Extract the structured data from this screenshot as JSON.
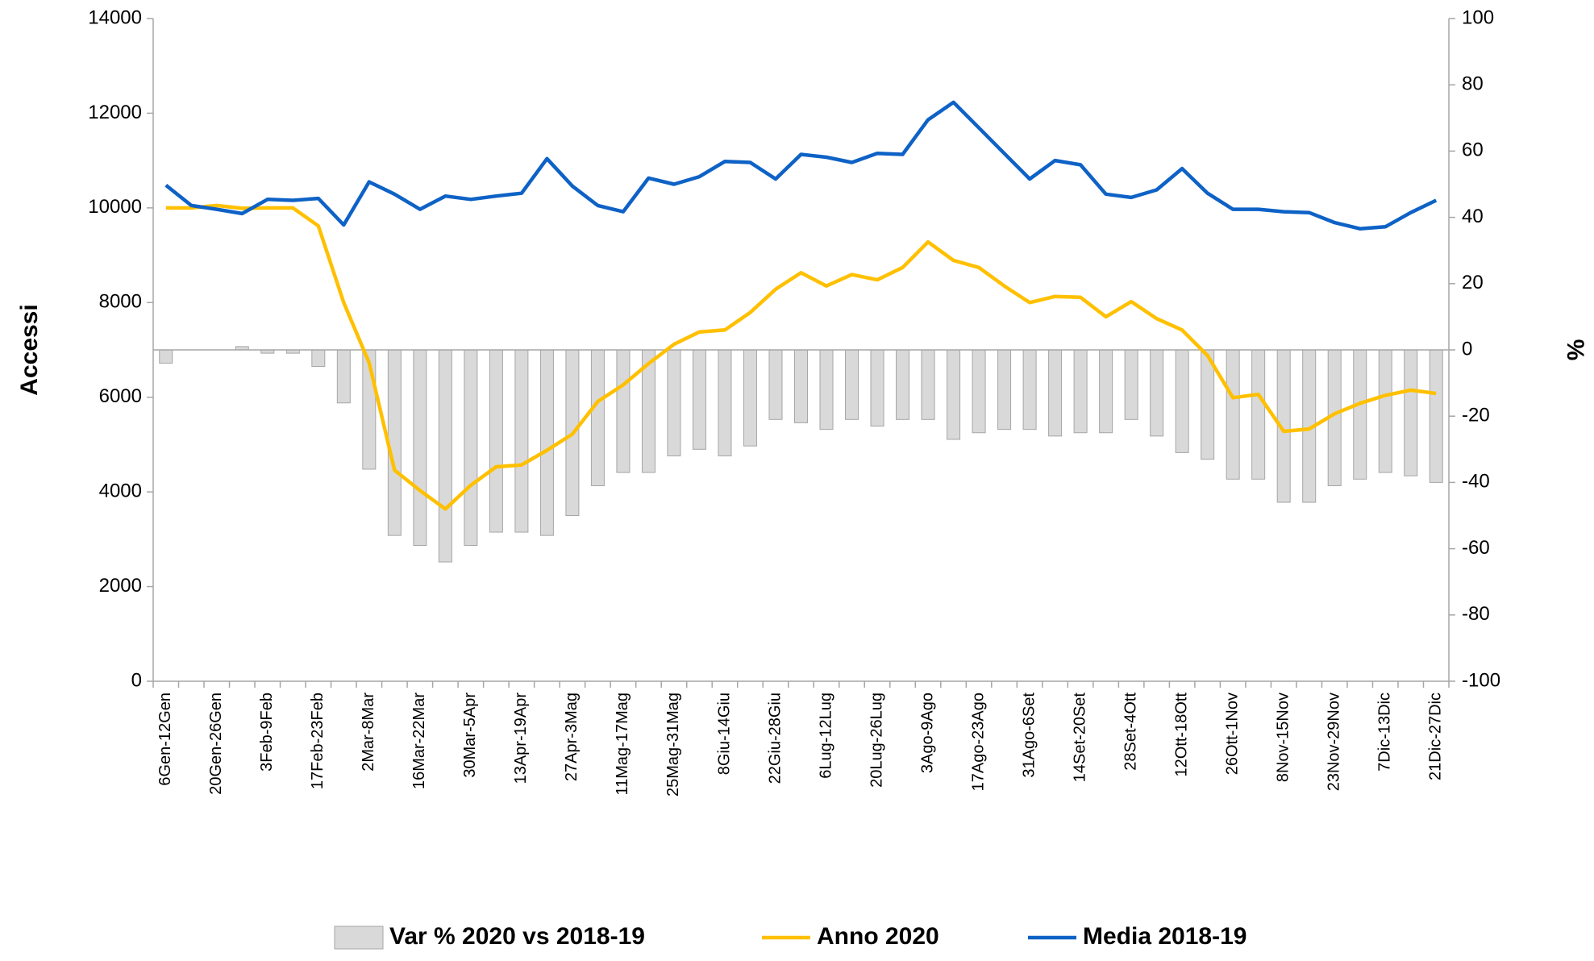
{
  "chart_data": {
    "type": "combo",
    "ylabel": "Accessi",
    "y2label": "%",
    "categories": [
      "6Gen-12Gen",
      null,
      "20Gen-26Gen",
      null,
      "3Feb-9Feb",
      null,
      "17Feb-23Feb",
      null,
      "2Mar-8Mar",
      null,
      "16Mar-22Mar",
      null,
      "30Mar-5Apr",
      null,
      "13Apr-19Apr",
      null,
      "27Apr-3Mag",
      null,
      "11Mag-17Mag",
      null,
      "25Mag-31Mag",
      null,
      "8Giu-14Giu",
      null,
      "22Giu-28Giu",
      null,
      "6Lug-12Lug",
      null,
      "20Lug-26Lug",
      null,
      "3Ago-9Ago",
      null,
      "17Ago-23Ago",
      null,
      "31Ago-6Set",
      null,
      "14Set-20Set",
      null,
      "28Set-4Ott",
      null,
      "12Ott-18Ott",
      null,
      "26Ott-1Nov",
      null,
      "8Nov-15Nov",
      null,
      "23Nov-29Nov",
      null,
      "7Dic-13Dic",
      null,
      "21Dic-27Dic"
    ],
    "series": [
      {
        "name": "Var % 2020 vs 2018-19",
        "type": "bar",
        "axis": "y2",
        "color": "#d9d9d9",
        "values": [
          -4,
          0,
          0,
          1,
          -1,
          -1,
          -5,
          -16,
          -36,
          -56,
          -59,
          -64,
          -59,
          -55,
          -55,
          -56,
          -50,
          -41,
          -37,
          -37,
          -32,
          -30,
          -32,
          -29,
          -21,
          -22,
          -24,
          -21,
          -23,
          -21,
          -21,
          -27,
          -25,
          -24,
          -24,
          -26,
          -25,
          -25,
          -21,
          -26,
          -31,
          -33,
          -39,
          -39,
          -46,
          -46,
          -41,
          -39,
          -37,
          -38,
          -40
        ]
      },
      {
        "name": "Anno 2020",
        "type": "line",
        "color": "#ffc000",
        "values": [
          10000,
          10000,
          10050,
          9990,
          10000,
          10000,
          9620,
          8000,
          6730,
          4460,
          4030,
          3640,
          4140,
          4530,
          4570,
          4880,
          5220,
          5910,
          6260,
          6710,
          7120,
          7380,
          7420,
          7790,
          8280,
          8630,
          8350,
          8590,
          8480,
          8740,
          9280,
          8890,
          8740,
          8350,
          8000,
          8130,
          8110,
          7700,
          8020,
          7660,
          7420,
          6880,
          5990,
          6060,
          5280,
          5330,
          5650,
          5870,
          6040,
          6150,
          6080
        ]
      },
      {
        "name": "Media 2018-19",
        "type": "line",
        "color": "#0e62c6",
        "values": [
          10480,
          10050,
          9970,
          9880,
          10180,
          10160,
          10200,
          9640,
          10550,
          10290,
          9970,
          10250,
          10180,
          10250,
          10310,
          11040,
          10460,
          10050,
          9920,
          10630,
          10500,
          10660,
          10980,
          10960,
          10610,
          11130,
          11070,
          10960,
          11150,
          11130,
          11860,
          12230,
          11690,
          11150,
          10610,
          11000,
          10910,
          10290,
          10220,
          10380,
          10830,
          10310,
          9970,
          9970,
          9920,
          9900,
          9690,
          9560,
          9600,
          9900,
          10160
        ]
      }
    ],
    "ylim": [
      0,
      14000
    ],
    "yticks": [
      0,
      2000,
      4000,
      6000,
      8000,
      10000,
      12000,
      14000
    ],
    "y2lim": [
      -100,
      100
    ],
    "y2ticks": [
      -100,
      -80,
      -60,
      -40,
      -20,
      0,
      20,
      40,
      60,
      80,
      100
    ],
    "grid": false,
    "legend": "bottom"
  }
}
